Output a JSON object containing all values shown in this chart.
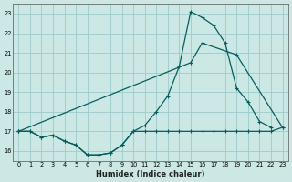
{
  "xlabel": "Humidex (Indice chaleur)",
  "bg_color": "#cce8e4",
  "grid_color": "#99cccc",
  "line_color": "#006060",
  "xlim": [
    -0.5,
    23.5
  ],
  "ylim": [
    15.5,
    23.5
  ],
  "xticks": [
    0,
    1,
    2,
    3,
    4,
    5,
    6,
    7,
    8,
    9,
    10,
    11,
    12,
    13,
    14,
    15,
    16,
    17,
    18,
    19,
    20,
    21,
    22,
    23
  ],
  "yticks": [
    16,
    17,
    18,
    19,
    20,
    21,
    22,
    23
  ],
  "line1_x": [
    0,
    1,
    2,
    3,
    4,
    5,
    6,
    7,
    8,
    9,
    10,
    11,
    12,
    13,
    14,
    15,
    16,
    17,
    18,
    19,
    20,
    21,
    22,
    23
  ],
  "line1_y": [
    17.0,
    17.0,
    16.7,
    16.8,
    16.5,
    16.3,
    15.8,
    15.8,
    15.9,
    16.3,
    17.0,
    17.0,
    17.0,
    17.0,
    17.0,
    17.0,
    17.0,
    17.0,
    17.0,
    17.0,
    17.0,
    17.0,
    17.0,
    17.2
  ],
  "line2_x": [
    0,
    1,
    2,
    3,
    4,
    5,
    6,
    7,
    8,
    9,
    10,
    11,
    12,
    13,
    14,
    15,
    16,
    17,
    18,
    19,
    20,
    21,
    22
  ],
  "line2_y": [
    17.0,
    17.0,
    16.7,
    16.8,
    16.5,
    16.3,
    15.8,
    15.8,
    15.9,
    16.3,
    17.0,
    17.3,
    18.0,
    18.8,
    20.3,
    23.1,
    22.8,
    22.4,
    21.5,
    19.2,
    18.5,
    17.5,
    17.2
  ],
  "line3_x": [
    0,
    15,
    16,
    19,
    23
  ],
  "line3_y": [
    17.0,
    20.5,
    21.5,
    20.9,
    17.2
  ]
}
